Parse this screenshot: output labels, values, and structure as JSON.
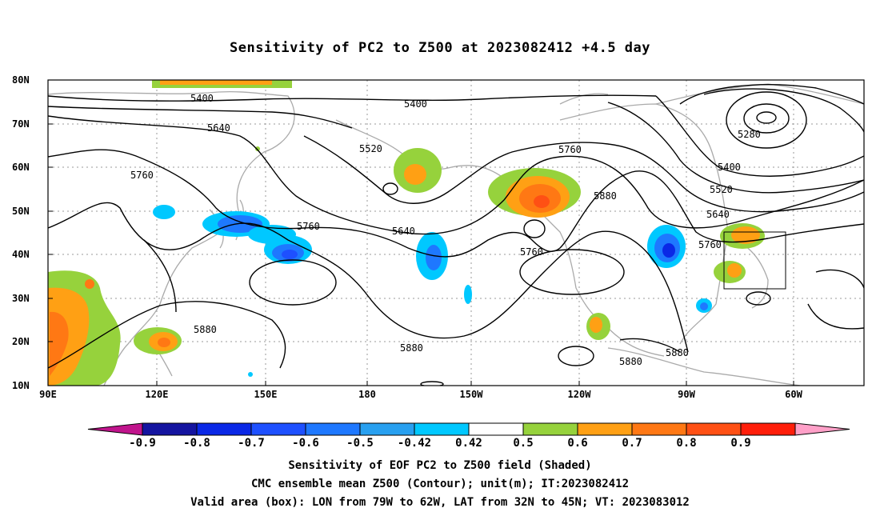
{
  "title": "Sensitivity of PC2 to Z500 at 2023082412 +4.5 day",
  "lat_labels": [
    "80N",
    "70N",
    "60N",
    "50N",
    "40N",
    "30N",
    "20N",
    "10N"
  ],
  "lon_labels": [
    "90E",
    "120E",
    "150E",
    "180",
    "150W",
    "120W",
    "90W",
    "60W"
  ],
  "contour_labels": [
    "5400",
    "5400",
    "5280",
    "5640",
    "5520",
    "5760",
    "5400",
    "5760",
    "5520",
    "5880",
    "5640",
    "5760",
    "5640",
    "5760",
    "5760",
    "5880",
    "5880",
    "5880",
    "5880"
  ],
  "colorbar": {
    "labels": [
      "-0.9",
      "-0.8",
      "-0.7",
      "-0.6",
      "-0.5",
      "-0.42",
      "0.42",
      "0.5",
      "0.6",
      "0.7",
      "0.8",
      "0.9"
    ],
    "colors": [
      "#1414a0",
      "#0a28e6",
      "#1e50ff",
      "#1e78ff",
      "#28a0f0",
      "#00c8ff",
      "#ffffff",
      "#96d23c",
      "#ffa014",
      "#ff7814",
      "#ff5014",
      "#ff1e0a"
    ],
    "low_end_color": "#c0148c",
    "high_end_color": "#ffa0c8"
  },
  "footer": {
    "line1": "Sensitivity of EOF PC2 to Z500 field (Shaded)",
    "line2": "CMC ensemble mean Z500 (Contour); unit(m); IT:2023082412",
    "line3": "Valid area (box): LON from 79W to 62W, LAT from 32N to 45N; VT: 2023083012"
  }
}
